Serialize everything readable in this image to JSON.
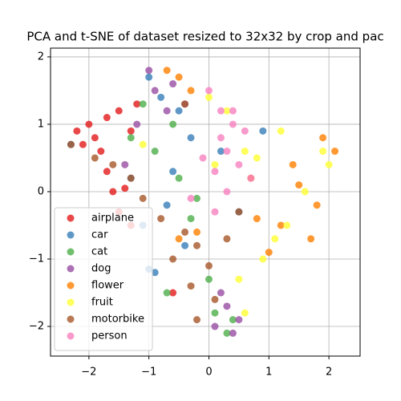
{
  "chart_data": {
    "type": "scatter",
    "title": "PCA and t-SNE of dataset resized to 32x32 by crop and pac",
    "xlim": [
      -2.64,
      2.52
    ],
    "ylim": [
      -2.44,
      2.13
    ],
    "xticks": [
      {
        "value": -2,
        "label": "−2"
      },
      {
        "value": -1,
        "label": "−1"
      },
      0,
      1,
      2
    ],
    "yticks": [
      {
        "value": -2,
        "label": "−2"
      },
      {
        "value": -1,
        "label": "−1"
      },
      0,
      1,
      2
    ],
    "grid": true,
    "legend": "lower left",
    "series": [
      {
        "name": "airplane",
        "color": "#e41a1c",
        "x": [
          -2.2,
          -2.0,
          -1.9,
          -1.7,
          -1.5,
          -1.3,
          -1.2,
          -2.1,
          -1.8,
          -1.6,
          -1.4,
          -1.5,
          -1.3,
          -0.6,
          -1.7
        ],
        "y": [
          0.9,
          1.0,
          0.8,
          1.1,
          1.2,
          0.9,
          1.3,
          0.7,
          0.6,
          0.0,
          0.05,
          -0.3,
          -0.5,
          -1.5,
          0.3
        ]
      },
      {
        "name": "car",
        "color": "#377eb8",
        "x": [
          -1.0,
          -0.8,
          -0.5,
          -0.3,
          -0.6,
          -1.3,
          -1.1,
          -0.7,
          -0.4,
          0.2,
          0.5,
          0.9,
          -0.9,
          -2.3,
          -1.0
        ],
        "y": [
          1.7,
          1.4,
          1.2,
          0.8,
          0.3,
          0.2,
          -0.5,
          -0.2,
          -0.8,
          0.6,
          -0.3,
          0.9,
          -1.2,
          0.7,
          -1.15
        ]
      },
      {
        "name": "cat",
        "color": "#4daf4a",
        "x": [
          -1.1,
          -0.9,
          -0.5,
          -0.3,
          -0.7,
          0.1,
          0.3,
          0.0,
          -1.3,
          -0.6,
          0.4,
          -0.2
        ],
        "y": [
          1.3,
          0.6,
          0.2,
          -0.4,
          -1.5,
          -1.8,
          -2.1,
          -1.3,
          0.8,
          1.0,
          -1.9,
          -0.1
        ]
      },
      {
        "name": "dog",
        "color": "#984ea3",
        "x": [
          -1.0,
          -0.9,
          -0.6,
          -1.2,
          -0.4,
          0.3,
          0.1,
          0.5,
          0.2,
          -0.7,
          -1.4,
          0.4
        ],
        "y": [
          1.8,
          1.5,
          1.6,
          1.0,
          1.3,
          -1.7,
          -2.0,
          -1.9,
          -1.5,
          1.2,
          0.4,
          -2.1
        ]
      },
      {
        "name": "flower",
        "color": "#ff7f00",
        "x": [
          -0.7,
          -0.5,
          -0.3,
          1.5,
          1.8,
          1.9,
          2.1,
          1.2,
          1.0,
          0.8,
          1.7,
          -0.2,
          0.7,
          1.4,
          -0.5
        ],
        "y": [
          1.8,
          1.7,
          1.5,
          0.1,
          -0.2,
          0.8,
          0.6,
          -0.5,
          -0.9,
          -0.4,
          -0.7,
          -0.6,
          0.2,
          0.4,
          -0.7
        ]
      },
      {
        "name": "fruit",
        "color": "#ffff33",
        "x": [
          0.0,
          0.3,
          1.2,
          1.9,
          2.0,
          1.6,
          1.3,
          1.1,
          0.9,
          0.6,
          0.8,
          -1.1,
          0.5,
          0.6,
          0.1
        ],
        "y": [
          1.4,
          1.2,
          0.9,
          0.6,
          0.4,
          0.0,
          -0.5,
          -0.7,
          -1.0,
          -1.8,
          0.5,
          0.7,
          -1.3,
          0.6,
          0.4
        ]
      },
      {
        "name": "motorbike",
        "color": "#a65628",
        "x": [
          -2.3,
          -1.9,
          -1.6,
          -1.3,
          -1.1,
          -0.8,
          -0.4,
          -0.2,
          0.0,
          0.3,
          0.5,
          -0.6,
          -0.3,
          0.1,
          -0.2,
          -0.4
        ],
        "y": [
          0.7,
          0.5,
          0.4,
          0.2,
          -0.1,
          -0.4,
          -0.6,
          -0.8,
          -1.1,
          -0.7,
          -0.3,
          -1.0,
          -1.4,
          -1.6,
          -1.9,
          1.3
        ]
      },
      {
        "name": "person",
        "color": "#f781bf",
        "x": [
          0.0,
          0.2,
          0.4,
          0.6,
          0.3,
          0.1,
          -0.1,
          0.5,
          0.7,
          0.2,
          0.4,
          -0.3,
          0.1,
          0.3
        ],
        "y": [
          1.5,
          1.2,
          1.0,
          0.9,
          0.6,
          0.3,
          0.5,
          0.4,
          0.2,
          0.8,
          1.2,
          -0.1,
          -0.3,
          0.0
        ]
      }
    ]
  }
}
